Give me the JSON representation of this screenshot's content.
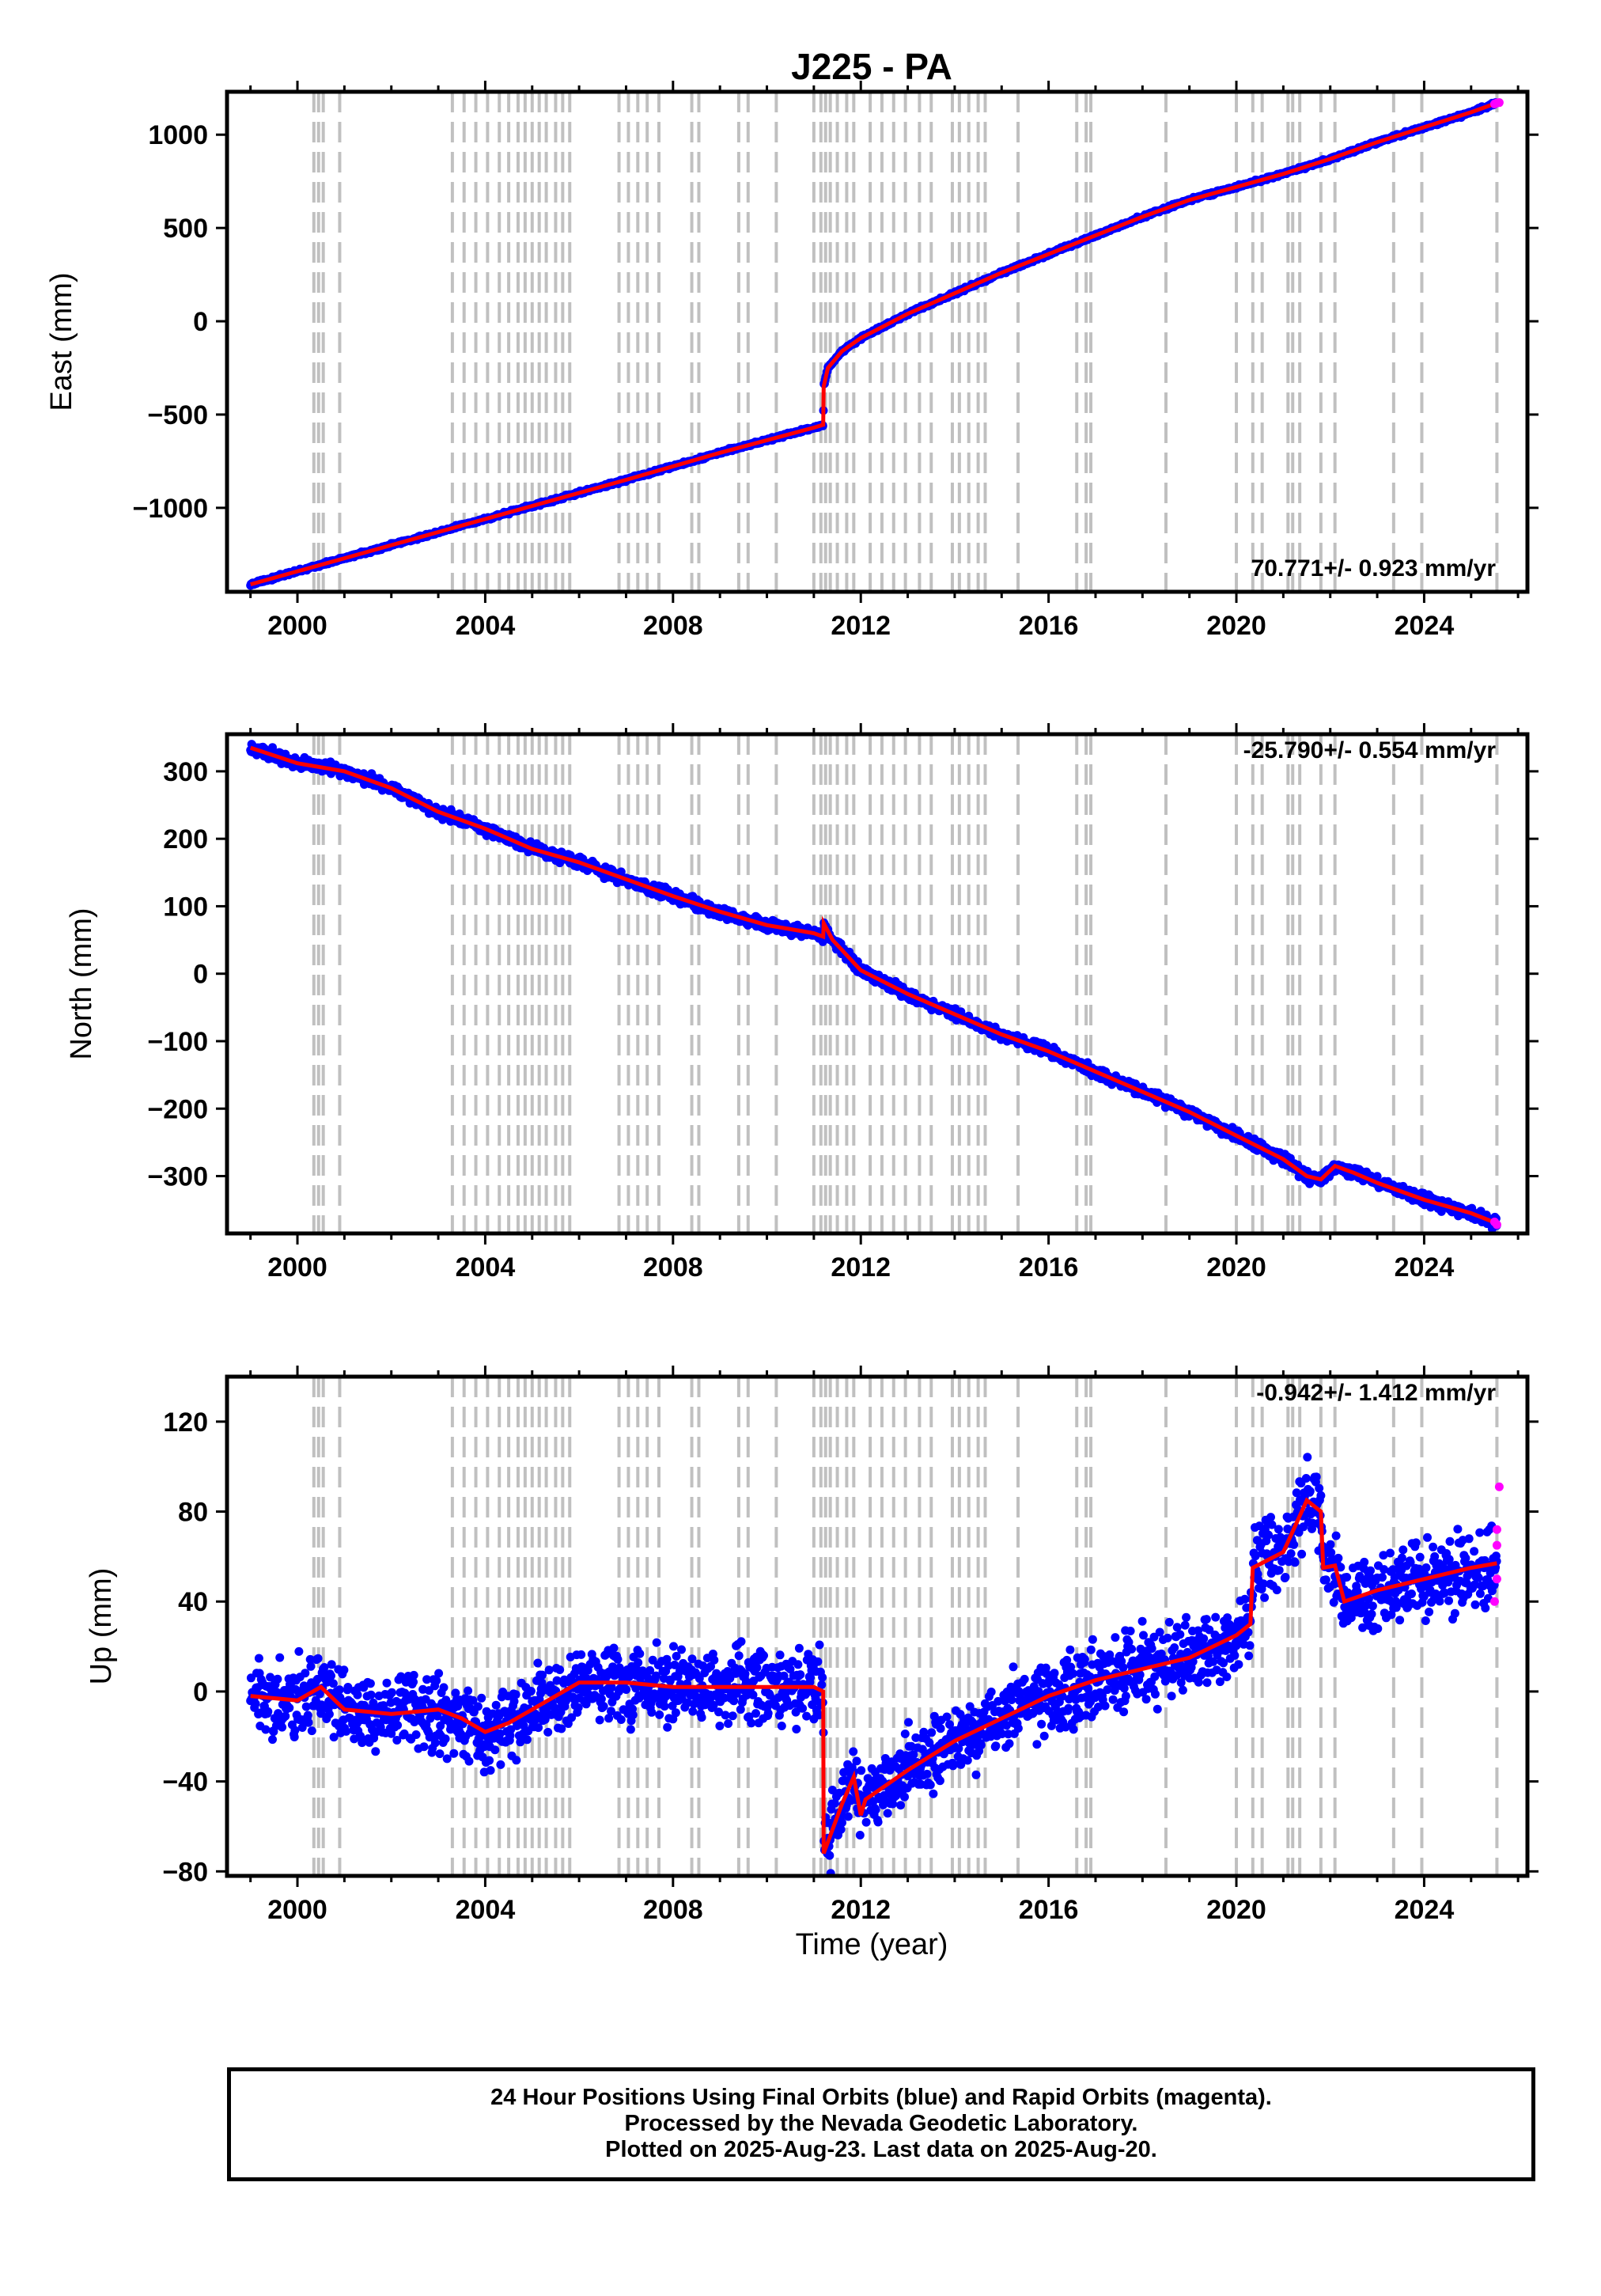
{
  "title": "J225 - PA",
  "xlabel": "Time (year)",
  "footer": {
    "line1": "24 Hour Positions Using Final Orbits (blue) and Rapid Orbits (magenta).",
    "line2": "Processed by the Nevada Geodetic Laboratory.",
    "line3": "Plotted on 2025-Aug-23. Last data on 2025-Aug-20."
  },
  "colors": {
    "final_orbits": "#0000ff",
    "rapid_orbits": "#ff00ff",
    "model": "#ff0000",
    "event_lines": "#c0c0c0"
  },
  "event_years": [
    2000.35,
    2000.45,
    2000.55,
    2000.9,
    2003.3,
    2003.55,
    2003.8,
    2004.05,
    2004.3,
    2004.5,
    2004.7,
    2004.85,
    2005.0,
    2005.15,
    2005.3,
    2005.5,
    2005.65,
    2005.8,
    2006.85,
    2007.05,
    2007.25,
    2007.45,
    2007.7,
    2008.4,
    2008.55,
    2009.4,
    2009.6,
    2010.2,
    2011.0,
    2011.15,
    2011.25,
    2011.35,
    2011.5,
    2011.7,
    2011.85,
    2012.2,
    2012.45,
    2012.7,
    2012.95,
    2013.25,
    2013.5,
    2013.95,
    2014.1,
    2014.3,
    2014.5,
    2014.65,
    2015.35,
    2016.6,
    2016.8,
    2016.9,
    2018.5,
    2020.0,
    2020.35,
    2020.55,
    2021.1,
    2021.2,
    2021.35,
    2021.8,
    2022.1,
    2023.35,
    2023.95,
    2025.55
  ],
  "chart_data": [
    {
      "type": "scatter",
      "component": "East",
      "ylabel": "East (mm)",
      "rate_annotation": "70.771+/- 0.923 mm/yr",
      "xlim": [
        1998.5,
        2026.2
      ],
      "ylim": [
        -1450,
        1230
      ],
      "xticks": [
        2000,
        2004,
        2008,
        2012,
        2016,
        2020,
        2024
      ],
      "yticks": [
        -1000,
        -500,
        0,
        500,
        1000
      ],
      "series": [
        {
          "role": "final_orbits",
          "x": [
            1999.0,
            2001.0,
            2003.0,
            2005.0,
            2007.0,
            2009.0,
            2011.0,
            2011.2,
            2011.21,
            2011.3,
            2011.6,
            2012.0,
            2013.0,
            2014.0,
            2015.0,
            2016.0,
            2017.0,
            2018.0,
            2019.0,
            2020.0,
            2021.0,
            2022.0,
            2023.0,
            2024.0,
            2025.0,
            2025.55
          ],
          "y": [
            -1410,
            -1270,
            -1130,
            -990,
            -850,
            -705,
            -570,
            -555,
            -350,
            -250,
            -160,
            -90,
            40,
            150,
            260,
            360,
            460,
            560,
            650,
            720,
            790,
            870,
            960,
            1040,
            1120,
            1170
          ]
        },
        {
          "role": "rapid_orbits",
          "x": [
            2025.5,
            2025.55,
            2025.6
          ],
          "y": [
            1165,
            1170,
            1172
          ]
        }
      ]
    },
    {
      "type": "scatter",
      "component": "North",
      "ylabel": "North (mm)",
      "rate_annotation": "-25.790+/- 0.554 mm/yr",
      "xlim": [
        1998.5,
        2026.2
      ],
      "ylim": [
        -385,
        355
      ],
      "xticks": [
        2000,
        2004,
        2008,
        2012,
        2016,
        2020,
        2024
      ],
      "yticks": [
        -300,
        -200,
        -100,
        0,
        100,
        200,
        300
      ],
      "series": [
        {
          "role": "final_orbits",
          "x": [
            1999.0,
            2000.0,
            2001.0,
            2002.0,
            2003.0,
            2004.0,
            2005.0,
            2006.0,
            2007.0,
            2008.0,
            2009.0,
            2010.0,
            2011.0,
            2011.2,
            2011.21,
            2011.4,
            2012.0,
            2013.0,
            2014.0,
            2015.0,
            2016.0,
            2017.0,
            2018.0,
            2019.0,
            2020.0,
            2021.0,
            2021.5,
            2021.8,
            2022.1,
            2022.5,
            2023.0,
            2024.0,
            2025.0,
            2025.55
          ],
          "y": [
            335,
            312,
            300,
            275,
            240,
            215,
            185,
            165,
            140,
            115,
            92,
            72,
            60,
            55,
            75,
            50,
            5,
            -30,
            -60,
            -90,
            -115,
            -145,
            -175,
            -205,
            -240,
            -275,
            -300,
            -305,
            -285,
            -295,
            -310,
            -335,
            -355,
            -370
          ]
        },
        {
          "role": "rapid_orbits",
          "x": [
            2025.5,
            2025.55
          ],
          "y": [
            -368,
            -372
          ]
        }
      ]
    },
    {
      "type": "scatter",
      "component": "Up",
      "ylabel": "Up (mm)",
      "rate_annotation": "-0.942+/- 1.412 mm/yr",
      "xlim": [
        1998.5,
        2026.2
      ],
      "ylim": [
        -82,
        140
      ],
      "xticks": [
        2000,
        2004,
        2008,
        2012,
        2016,
        2020,
        2024
      ],
      "yticks": [
        -80,
        -40,
        0,
        40,
        80,
        120
      ],
      "series": [
        {
          "role": "final_orbits",
          "x": [
            1999.0,
            2000.0,
            2000.5,
            2001.0,
            2002.0,
            2003.0,
            2003.5,
            2004.0,
            2004.5,
            2005.0,
            2005.5,
            2006.0,
            2007.0,
            2008.0,
            2009.0,
            2010.0,
            2011.0,
            2011.2,
            2011.21,
            2011.6,
            2011.85,
            2012.0,
            2012.1,
            2013.0,
            2014.0,
            2015.0,
            2016.0,
            2017.0,
            2018.0,
            2019.0,
            2019.5,
            2020.0,
            2020.3,
            2020.35,
            2021.0,
            2021.5,
            2021.8,
            2021.85,
            2022.1,
            2022.3,
            2023.0,
            2024.0,
            2025.0,
            2025.55
          ],
          "y": [
            -2,
            -4,
            2,
            -8,
            -10,
            -8,
            -12,
            -18,
            -14,
            -8,
            -2,
            4,
            4,
            2,
            2,
            2,
            2,
            0,
            -72,
            -50,
            -38,
            -55,
            -48,
            -35,
            -22,
            -12,
            -2,
            5,
            10,
            15,
            20,
            25,
            30,
            55,
            62,
            85,
            80,
            55,
            56,
            40,
            45,
            50,
            55,
            57
          ]
        },
        {
          "role": "rapid_orbits",
          "x": [
            2025.5,
            2025.55,
            2025.55,
            2025.55,
            2025.6
          ],
          "y": [
            40,
            50,
            65,
            72,
            91
          ]
        }
      ]
    }
  ]
}
